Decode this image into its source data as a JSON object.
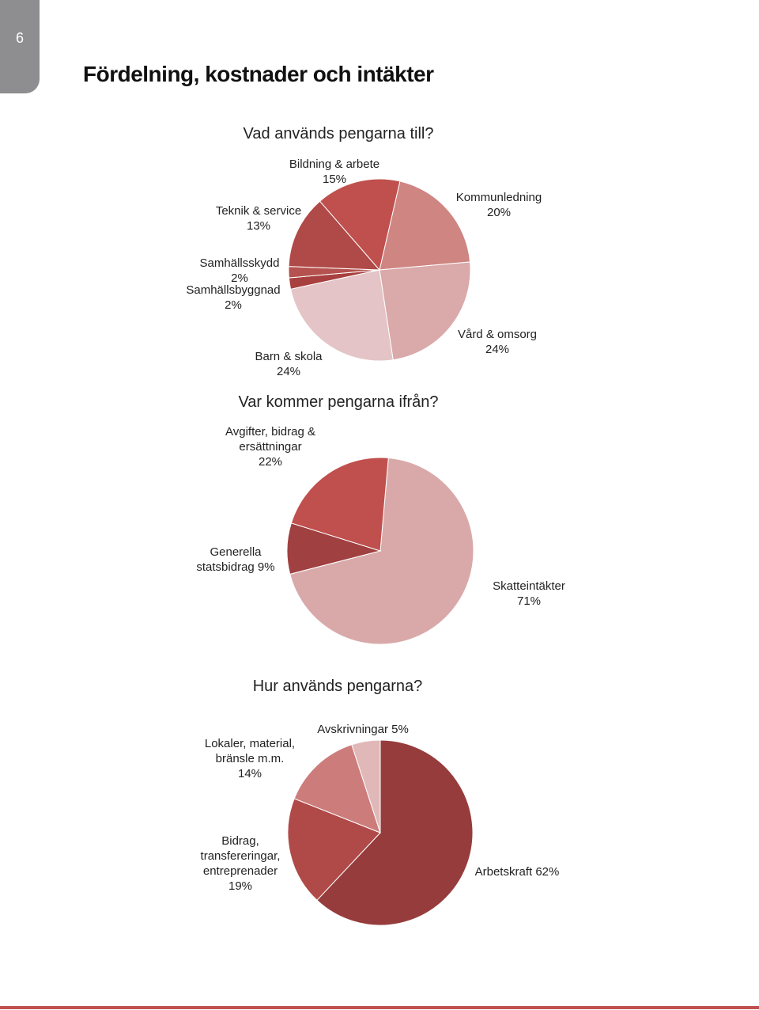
{
  "page_number": "6",
  "title": "Fördelning, kostnader och intäkter",
  "chart_data": [
    {
      "type": "pie",
      "title": "Vad används pengarna till?",
      "categories": [
        "Kommunledning",
        "Vård & omsorg",
        "Barn & skola",
        "Samhällsbyggnad",
        "Samhällsskydd",
        "Teknik & service",
        "Bildning & arbete"
      ],
      "values": [
        20,
        24,
        24,
        2,
        2,
        13,
        15
      ],
      "value_labels": [
        "20%",
        "24%",
        "24%",
        "2%",
        "2%",
        "13%",
        "15%"
      ],
      "colors": [
        "#cf8582",
        "#daa9a9",
        "#e4c4c6",
        "#a8403f",
        "#b5524f",
        "#b04a48",
        "#c0504d"
      ]
    },
    {
      "type": "pie",
      "title": "Var kommer pengarna ifrån?",
      "categories": [
        "Skatteintäkter",
        "Generella statsbidrag",
        "Avgifter, bidrag & ersättningar"
      ],
      "values": [
        71,
        9,
        22
      ],
      "value_labels": [
        "71%",
        "9%",
        "22%"
      ],
      "colors": [
        "#d9a9a9",
        "#a04040",
        "#c0504d"
      ]
    },
    {
      "type": "pie",
      "title": "Hur används pengarna?",
      "categories": [
        "Arbetskraft",
        "Bidrag, transfereringar, entreprenader",
        "Lokaler, material, bränsle m.m.",
        "Avskrivningar"
      ],
      "values": [
        62,
        19,
        14,
        5
      ],
      "value_labels": [
        "62%",
        "19%",
        "14%",
        "5%"
      ],
      "colors": [
        "#963c3c",
        "#b04a48",
        "#cc7d7b",
        "#e0b8b8"
      ]
    }
  ]
}
